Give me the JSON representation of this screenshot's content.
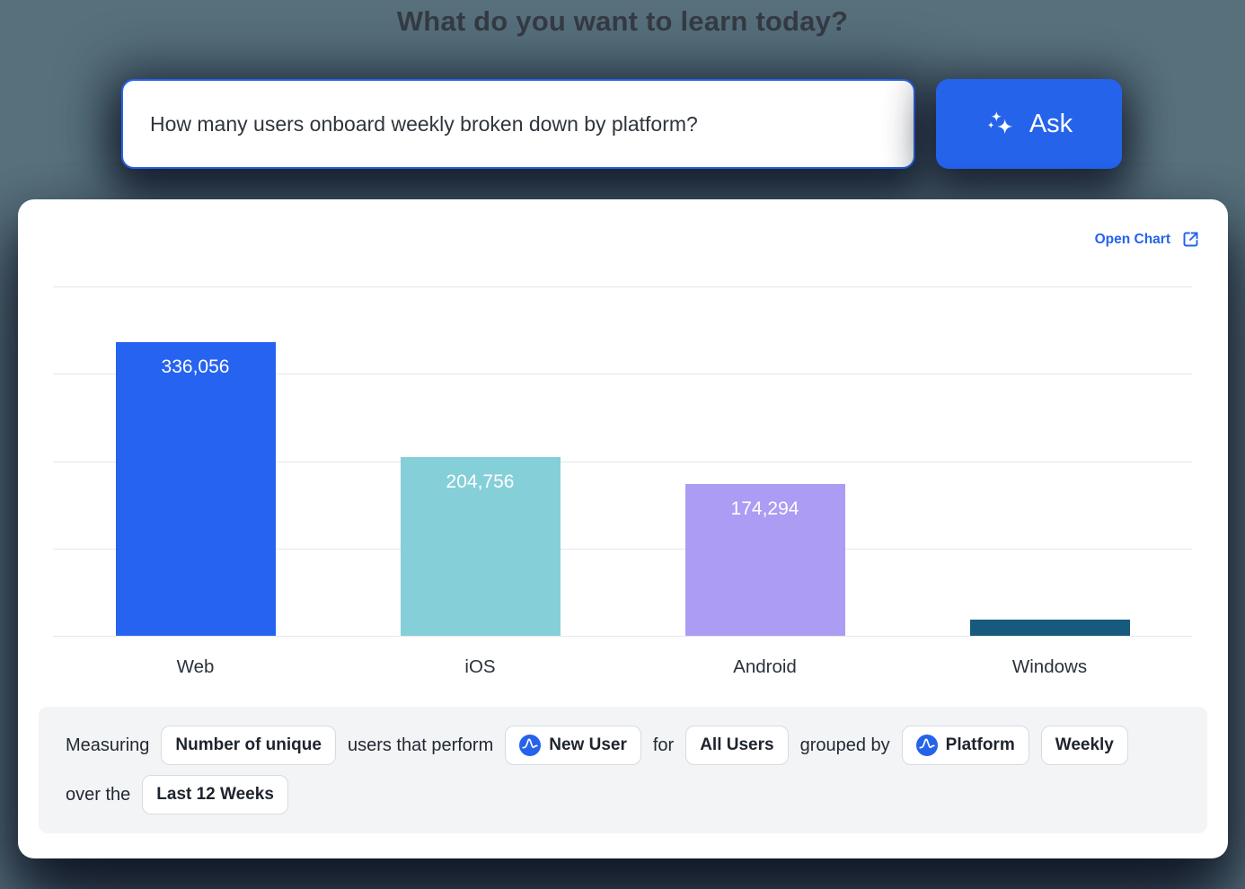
{
  "title": "What do you want to learn today?",
  "search": {
    "value": "How many users onboard weekly broken down by platform?",
    "ask_label": "Ask"
  },
  "card": {
    "open_chart_label": "Open Chart"
  },
  "chart_data": {
    "type": "bar",
    "title": "",
    "xlabel": "",
    "ylabel": "",
    "categories": [
      "Web",
      "iOS",
      "Android",
      "Windows"
    ],
    "values": [
      336056,
      204756,
      174294,
      19000
    ],
    "data_labels": [
      "336,056",
      "204,756",
      "174,294",
      ""
    ],
    "bar_colors": [
      "#2663F0",
      "#85CFD9",
      "#AC9CF4",
      "#175A7D"
    ],
    "ylim": [
      0,
      400000
    ],
    "gridline_step": 100000,
    "grid": "on",
    "legend": "none",
    "y_tick_labels_visible": false
  },
  "query_builder": {
    "lines": [
      [
        {
          "t": "text",
          "label": "Measuring"
        },
        {
          "t": "chip",
          "label": "Number of unique"
        },
        {
          "t": "text",
          "label": "users that perform"
        },
        {
          "t": "chip",
          "label": "New User",
          "icon": "amplitude-logo-icon"
        },
        {
          "t": "text",
          "label": "for"
        },
        {
          "t": "chip",
          "label": "All Users"
        },
        {
          "t": "text",
          "label": "grouped by"
        },
        {
          "t": "chip",
          "label": "Platform",
          "icon": "amplitude-logo-icon"
        },
        {
          "t": "chip",
          "label": "Weekly"
        }
      ],
      [
        {
          "t": "text",
          "label": "over the"
        },
        {
          "t": "chip",
          "label": "Last 12 Weeks"
        }
      ]
    ]
  },
  "icons": {
    "ask_button": "sparkles-icon",
    "open_chart": "external-link-icon",
    "chip": "amplitude-logo-icon"
  },
  "colors": {
    "page_background": "#57707C",
    "accent_blue": "#2563EB",
    "card_background": "#FFFFFF",
    "footer_background": "#F2F4F6",
    "title_text": "#353B44",
    "body_text": "#232933",
    "gridline": "#E5E7EA",
    "shadow_navy": "#141B2C"
  }
}
